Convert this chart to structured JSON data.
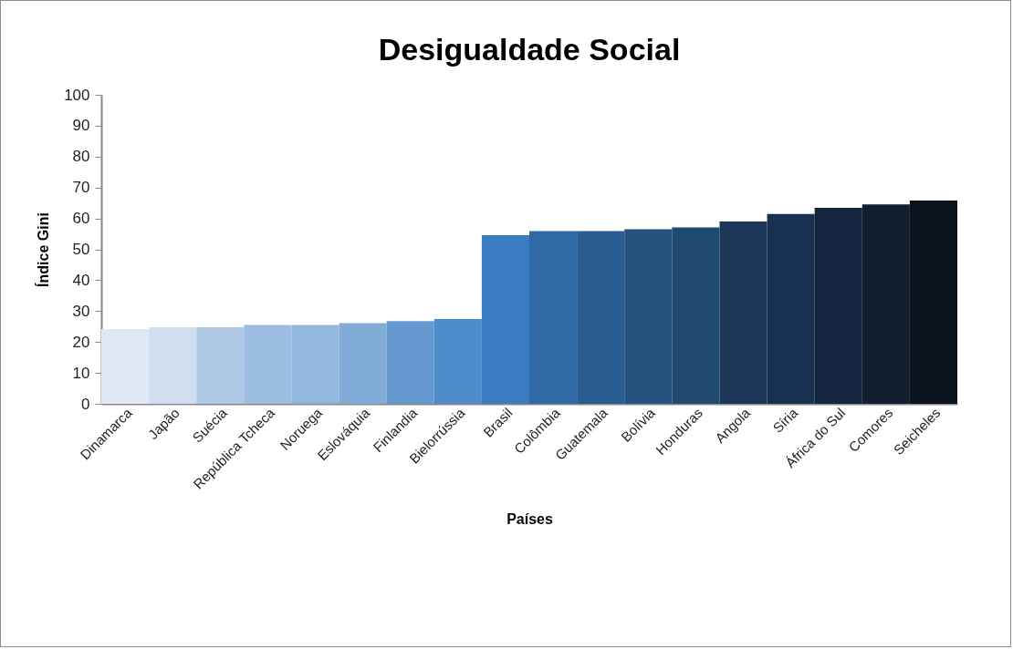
{
  "chart_data": {
    "type": "bar",
    "title": "Desigualdade Social",
    "xlabel": "Países",
    "ylabel": "Índice Gini",
    "categories": [
      "Dinamarca",
      "Japão",
      "Suécia",
      "República Tcheca",
      "Noruega",
      "Eslováquia",
      "Finlandia",
      "Bielorrússia",
      "Brasil",
      "Colômbia",
      "Guatemala",
      "Bolívia",
      "Honduras",
      "Angola",
      "Síria",
      "África do Sul",
      "Comores",
      "Seicheles"
    ],
    "values": [
      24.2,
      24.8,
      24.8,
      25.5,
      25.5,
      26.1,
      26.8,
      27.4,
      54.6,
      55.9,
      55.9,
      56.5,
      57.1,
      59.0,
      61.4,
      63.4,
      64.5,
      65.8
    ],
    "colors": [
      "#dfe8f4",
      "#cfdff0",
      "#adc9e6",
      "#9bbde2",
      "#93b8de",
      "#81acd7",
      "#6699cf",
      "#4e8cc9",
      "#3a7cc2",
      "#306aa6",
      "#2a5d91",
      "#26527f",
      "#214a72",
      "#1c3757",
      "#193151",
      "#14263d",
      "#111f2e",
      "#0b131d"
    ],
    "ylim": [
      0,
      100
    ],
    "yticks": [
      0,
      10,
      20,
      30,
      40,
      50,
      60,
      70,
      80,
      90,
      100
    ],
    "grid": false,
    "legend": false
  }
}
